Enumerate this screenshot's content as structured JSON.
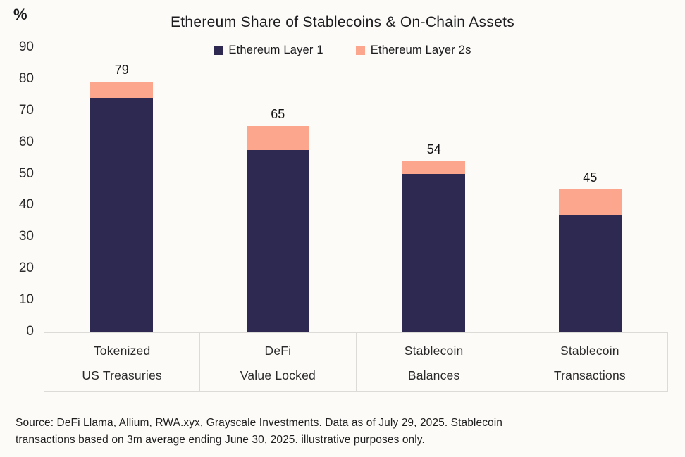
{
  "chart_data": {
    "type": "bar",
    "subtype": "stacked",
    "title": "Ethereum Share of Stablecoins & On-Chain Assets",
    "ylabel": "%",
    "ylim": [
      0,
      90
    ],
    "yticks": [
      0,
      10,
      20,
      30,
      40,
      50,
      60,
      70,
      80,
      90
    ],
    "grid": false,
    "legend_position": "top-center",
    "categories": [
      {
        "line1": "Tokenized",
        "line2": "US Treasuries"
      },
      {
        "line1": "DeFi",
        "line2": "Value Locked"
      },
      {
        "line1": "Stablecoin",
        "line2": "Balances"
      },
      {
        "line1": "Stablecoin",
        "line2": "Transactions"
      }
    ],
    "series": [
      {
        "name": "Ethereum Layer 1",
        "color": "#2e2950",
        "values": [
          74,
          57.5,
          50,
          37
        ]
      },
      {
        "name": "Ethereum Layer 2s",
        "color": "#fca78d",
        "values": [
          5,
          7.5,
          4,
          8
        ]
      }
    ],
    "totals": [
      79,
      65,
      54,
      45
    ]
  },
  "footer": {
    "line1": "Source: DeFi Llama, Allium, RWA.xyx, Grayscale Investments. Data as of July 29, 2025. Stablecoin",
    "line2": "transactions based on 3m average ending June 30, 2025. illustrative purposes only."
  },
  "colors": {
    "background": "#fcfbf8",
    "layer1": "#2e2950",
    "layer2": "#fca78d",
    "band_border": "#dcdbd8",
    "text": "#1c1c1e"
  }
}
